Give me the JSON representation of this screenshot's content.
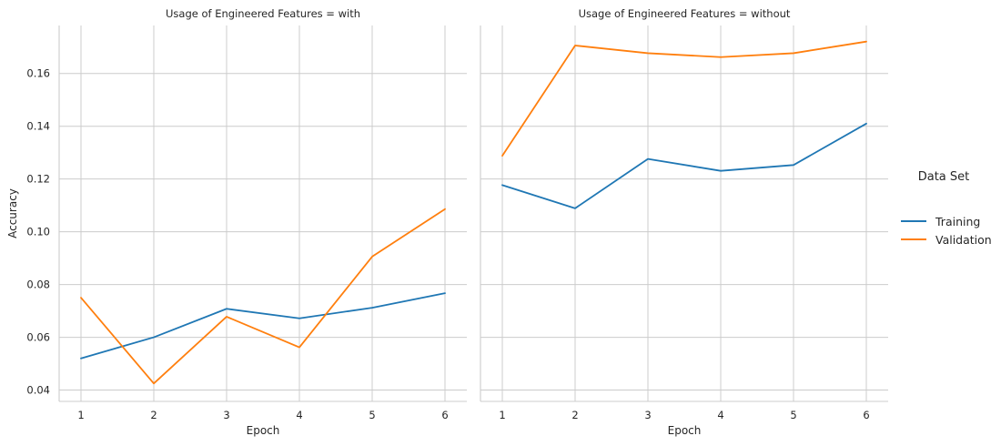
{
  "chart_data": {
    "type": "line",
    "facet_variable": "Usage of Engineered Features",
    "facets": [
      {
        "title": "Usage of Engineered Features = with",
        "x": [
          1,
          2,
          3,
          4,
          5,
          6
        ],
        "series": [
          {
            "name": "Training",
            "values": [
              0.052,
              0.06,
              0.0708,
              0.0672,
              0.0712,
              0.0767
            ]
          },
          {
            "name": "Validation",
            "values": [
              0.075,
              0.0425,
              0.0678,
              0.0562,
              0.0906,
              0.1086
            ]
          }
        ]
      },
      {
        "title": "Usage of Engineered Features = without",
        "x": [
          1,
          2,
          3,
          4,
          5,
          6
        ],
        "series": [
          {
            "name": "Training",
            "values": [
              0.1177,
              0.1089,
              0.1276,
              0.1231,
              0.1253,
              0.141
            ]
          },
          {
            "name": "Validation",
            "values": [
              0.1288,
              0.1706,
              0.1677,
              0.1662,
              0.1677,
              0.1721
            ]
          }
        ]
      }
    ],
    "xlabel": "Epoch",
    "ylabel": "Accuracy",
    "xticks": [
      "1",
      "2",
      "3",
      "4",
      "5",
      "6"
    ],
    "yticks": [
      "0.04",
      "0.06",
      "0.08",
      "0.10",
      "0.12",
      "0.14",
      "0.16"
    ],
    "ytick_values": [
      0.04,
      0.06,
      0.08,
      0.1,
      0.12,
      0.14,
      0.16
    ],
    "xlim": [
      0.7,
      6.3
    ],
    "ylim": [
      0.0357,
      0.1782
    ],
    "grid": true,
    "legend": {
      "title": "Data Set",
      "placement": "right",
      "entries": [
        {
          "label": "Training",
          "color": "#1f77b4"
        },
        {
          "label": "Validation",
          "color": "#ff7f0e"
        }
      ]
    },
    "colors": {
      "Training": "#1f77b4",
      "Validation": "#ff7f0e"
    }
  }
}
